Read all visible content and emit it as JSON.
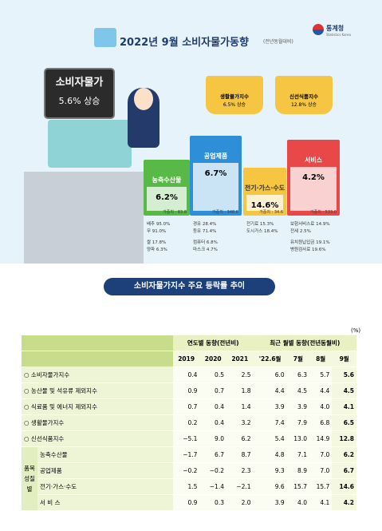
{
  "header": {
    "title": "2022년 9월 소비자물가동향",
    "subtitle": "(전년동월대비)",
    "logo": "통계청",
    "logo_en": "Statistics Korea"
  },
  "headline": {
    "label": "소비자물가",
    "value": "5.6% 상승"
  },
  "baskets": [
    {
      "label": "생활물가지수",
      "value": "6.5% 상승"
    },
    {
      "label": "신선식품지수",
      "value": "12.8% 상승"
    }
  ],
  "groups": [
    {
      "label": "농축수산물",
      "value": "6.2%",
      "weight": "가중치 : 83.8",
      "items": [
        "배추 95.0%",
        "무 91.0%",
        "쌀 17.8%",
        "양파 6.3%"
      ]
    },
    {
      "label": "공업제품",
      "value": "6.7%",
      "weight": "가중치 : 348.6",
      "items": [
        "경유 28.4%",
        "등유 71.4%",
        "컴퓨터 6.8%",
        "마스크 4.7%"
      ]
    },
    {
      "label": "전기·가스·수도",
      "value": "14.6%",
      "weight": "가중치 : 34.6",
      "items": [
        "전기료 15.3%",
        "도시가스 18.4%"
      ]
    },
    {
      "label": "서비스",
      "value": "4.2%",
      "weight": "가중치 : 533.0",
      "items": [
        "보험서비스료 14.9%",
        "전세 2.5%",
        "유치원납입금 19.1%",
        "병원검사료 19.6%"
      ]
    }
  ],
  "section_title": "소비자물가지수 주요 등락률 추이",
  "table": {
    "unit": "(%)",
    "group_yearly": "연도별 동향(전년비)",
    "group_monthly": "최근 월별 동향(전년동월비)",
    "columns": [
      "2019",
      "2020",
      "2021",
      "'22.6월",
      "7월",
      "8월",
      "9월"
    ],
    "side_label": "품목성질별",
    "rows": [
      {
        "label": "○ 소비자물가지수",
        "cells": [
          "0.4",
          "0.5",
          "2.5",
          "6.0",
          "6.3",
          "5.7",
          "5.6"
        ]
      },
      {
        "label": "○ 농산물 및 석유류 제외지수",
        "cells": [
          "0.9",
          "0.7",
          "1.8",
          "4.4",
          "4.5",
          "4.4",
          "4.5"
        ]
      },
      {
        "label": "○ 식료품 및 에너지 제외지수",
        "cells": [
          "0.7",
          "0.4",
          "1.4",
          "3.9",
          "3.9",
          "4.0",
          "4.1"
        ]
      },
      {
        "label": "○ 생활물가지수",
        "cells": [
          "0.2",
          "0.4",
          "3.2",
          "7.4",
          "7.9",
          "6.8",
          "6.5"
        ]
      },
      {
        "label": "○ 신선식품지수",
        "cells": [
          "−5.1",
          "9.0",
          "6.2",
          "5.4",
          "13.0",
          "14.9",
          "12.8"
        ]
      },
      {
        "label": "농축수산물",
        "cells": [
          "−1.7",
          "6.7",
          "8.7",
          "4.8",
          "7.1",
          "7.0",
          "6.2"
        ]
      },
      {
        "label": "공업제품",
        "cells": [
          "−0.2",
          "−0.2",
          "2.3",
          "9.3",
          "8.9",
          "7.0",
          "6.7"
        ]
      },
      {
        "label": "전기·가스·수도",
        "cells": [
          "1.5",
          "−1.4",
          "−2.1",
          "9.6",
          "15.7",
          "15.7",
          "14.6"
        ]
      },
      {
        "label": "서 비 스",
        "cells": [
          "0.9",
          "0.3",
          "2.0",
          "3.9",
          "4.0",
          "4.1",
          "4.2"
        ]
      }
    ]
  }
}
